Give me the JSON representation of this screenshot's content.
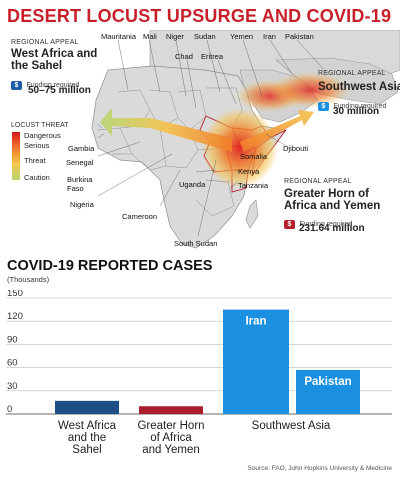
{
  "title": "DESERT LOCUST UPSURGE AND COVID-19",
  "map": {
    "appeals": [
      {
        "label": "REGIONAL APPEAL",
        "region": "West Africa and the Sahel",
        "region_lines": [
          "West Africa and",
          "the Sahel"
        ],
        "funding_label": "Funding required",
        "funding": "50–75 million",
        "color": "#1c5aa6"
      },
      {
        "label": "REGIONAL APPEAL",
        "region": "Southwest Asia",
        "region_lines": [
          "Southwest Asia"
        ],
        "funding_label": "Funding required",
        "funding": "30 million",
        "color": "#1f8fe0"
      },
      {
        "label": "REGIONAL APPEAL",
        "region": "Greater Horn of Africa and Yemen",
        "region_lines": [
          "Greater Horn of",
          "Africa and Yemen"
        ],
        "funding_label": "Funding required",
        "funding": "231.64 million",
        "color": "#b3202b"
      }
    ],
    "countries": [
      "Mauritania",
      "Mali",
      "Niger",
      "Sudan",
      "Yemen",
      "Iran",
      "Pakistan",
      "Chad",
      "Eritrea",
      "Gambia",
      "Senegal",
      "Burkina Faso",
      "Nigeria",
      "Cameroon",
      "Uganda",
      "Somalia",
      "Djibouti",
      "Kenya",
      "Tanzania",
      "South Sudan"
    ],
    "legend": {
      "title": "LOCUST THREAT",
      "items": [
        "Dangerous",
        "Serious",
        "Threat",
        "Caution"
      ],
      "colors": [
        "#d7191c",
        "#f07d2b",
        "#f5c24a",
        "#b5d66e"
      ]
    }
  },
  "cases_title": "COVID-19 REPORTED CASES",
  "cases_unit": "(Thousands)",
  "source": "Source: FAO, John Hopkins University & Medicine",
  "chart_data": {
    "type": "bar",
    "title": "COVID-19 REPORTED CASES",
    "ylabel": "(Thousands)",
    "ylim": [
      0,
      150
    ],
    "yticks": [
      0,
      30,
      60,
      90,
      120,
      150
    ],
    "grid": true,
    "categories": [
      "West Africa and the Sahel",
      "Greater Horn of Africa and Yemen",
      "Southwest Asia"
    ],
    "category_lines": [
      [
        "West Africa",
        "and the",
        "Sahel"
      ],
      [
        "Greater Horn",
        "of Africa",
        "and Yemen"
      ],
      [
        "Southwest Asia"
      ]
    ],
    "bars": [
      {
        "group": "West Africa and the Sahel",
        "label": "",
        "value": 17,
        "color": "#1c4f85"
      },
      {
        "group": "Greater Horn of Africa and Yemen",
        "label": "",
        "value": 10,
        "color": "#a81e2c"
      },
      {
        "group": "Southwest Asia",
        "label": "Iran",
        "value": 135,
        "color": "#1b8fe0"
      },
      {
        "group": "Southwest Asia",
        "label": "Pakistan",
        "value": 57,
        "color": "#1b8fe0"
      }
    ]
  }
}
